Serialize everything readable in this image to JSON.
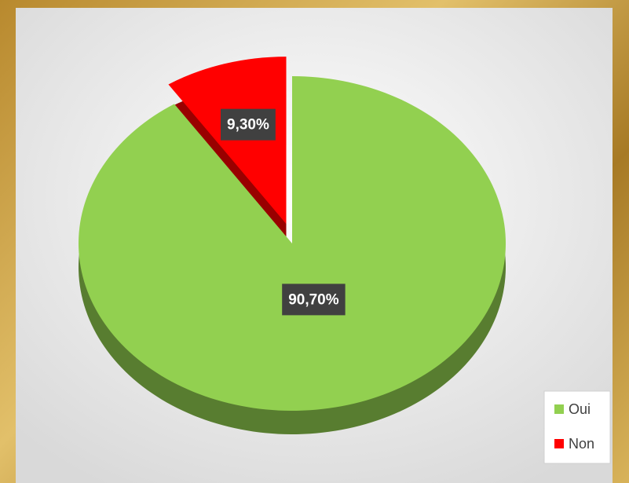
{
  "chart_data": {
    "type": "pie",
    "categories": [
      "Oui",
      "Non"
    ],
    "values": [
      90.7,
      9.3
    ],
    "value_labels": [
      "90,70%",
      "9,30%"
    ],
    "colors": [
      "#92d050",
      "#ff0000"
    ],
    "legend": "bottom-right"
  }
}
